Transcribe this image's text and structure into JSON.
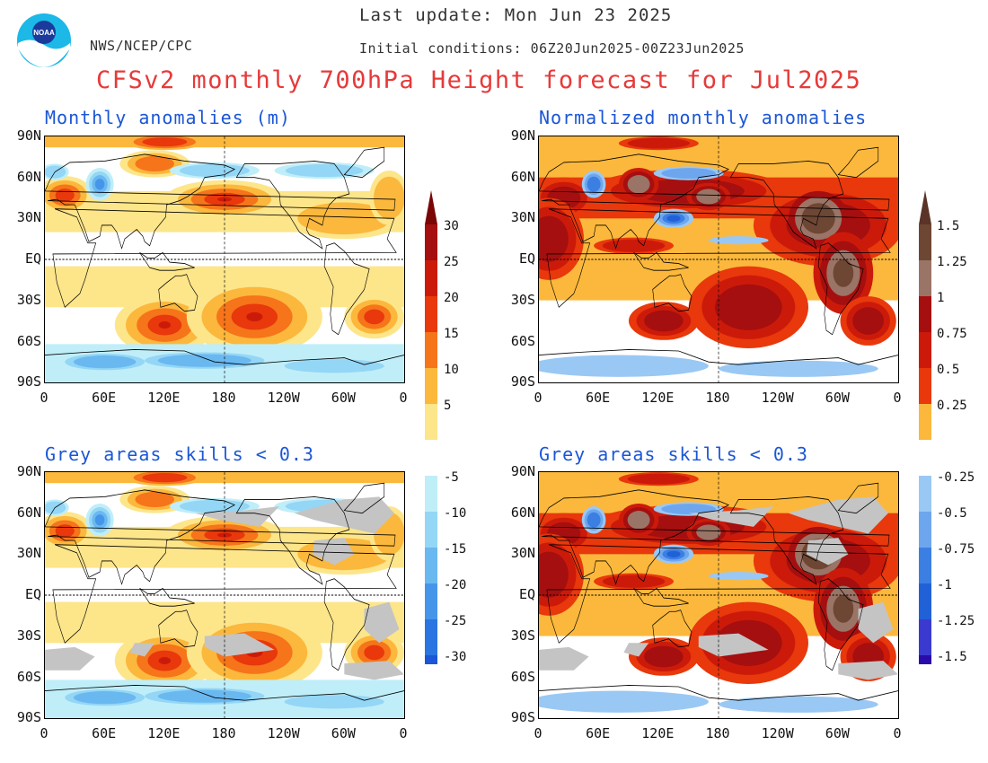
{
  "header": {
    "last_update": "Last update: Mon Jun 23 2025",
    "agency": "NWS/NCEP/CPC",
    "initial_conditions": "Initial conditions: 06Z20Jun2025-00Z23Jun2025",
    "title": "CFSv2 monthly 700hPa Height forecast for Jul2025",
    "logo_text": "NOAA"
  },
  "axes": {
    "lat_labels": [
      "90N",
      "60N",
      "30N",
      "EQ",
      "30S",
      "60S",
      "90S"
    ],
    "lon_labels": [
      "0",
      "60E",
      "120E",
      "180",
      "120W",
      "60W",
      "0"
    ]
  },
  "panels": [
    {
      "title": "Monthly anomalies (m)",
      "kind": "raw",
      "grey": false
    },
    {
      "title": "Normalized monthly anomalies",
      "kind": "norm",
      "grey": false
    },
    {
      "title": "Grey areas skills < 0.3",
      "kind": "raw",
      "grey": true
    },
    {
      "title": "Grey areas skills < 0.3",
      "kind": "norm",
      "grey": true
    }
  ],
  "colorbars": {
    "raw": {
      "labels": [
        "30",
        "25",
        "20",
        "15",
        "10",
        "5",
        "-5",
        "-10",
        "-15",
        "-20",
        "-25",
        "-30"
      ],
      "warm_colors": [
        "#a50f0f",
        "#cc1a0a",
        "#e8380c",
        "#f6741a",
        "#fbb83c",
        "#fde58a"
      ],
      "cool_colors": [
        "#bfeef9",
        "#94d6f5",
        "#6ab8f0",
        "#4596ea",
        "#2a75e1",
        "#1a56d6"
      ]
    },
    "norm": {
      "labels": [
        "1.5",
        "1.25",
        "1",
        "0.75",
        "0.5",
        "0.25",
        "-0.25",
        "-0.5",
        "-0.75",
        "-1",
        "-1.25",
        "-1.5"
      ],
      "warm_colors": [
        "#6e4634",
        "#9a7466",
        "#a50f0f",
        "#cc1a0a",
        "#e8380c",
        "#fbb83c"
      ],
      "cool_colors": [
        "#9ac8f4",
        "#6ea6ee",
        "#3b7fe3",
        "#2161d8",
        "#3a3ad0",
        "#2a0aa8"
      ]
    },
    "raw_top_cap": "#7a0606",
    "raw_bottom_cap": "#1a3fbf",
    "norm_top_cap": "#5a3426",
    "norm_bottom_cap": "#20088a",
    "grey_color": "#c4c4c4",
    "land_outline": "#000000"
  }
}
